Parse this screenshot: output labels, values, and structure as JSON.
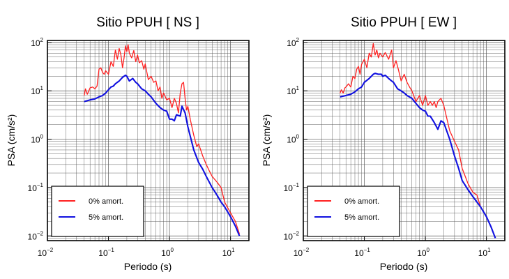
{
  "chart_data": [
    {
      "type": "line",
      "title": "Sitio PPUH [ NS ]",
      "xlabel": "Periodo (s)",
      "ylabel": "PSA (cm/s²)",
      "xscale": "log",
      "yscale": "log",
      "xlim": [
        0.01,
        20
      ],
      "ylim": [
        0.008,
        110
      ],
      "grid": true,
      "legend_position": "bottom-left",
      "xticks": [
        {
          "base": "10",
          "exp": "−2"
        },
        {
          "base": "10",
          "exp": "−1"
        },
        {
          "base": "10",
          "exp": "0"
        },
        {
          "base": "10",
          "exp": "1"
        }
      ],
      "yticks": [
        {
          "base": "10",
          "exp": "−2"
        },
        {
          "base": "10",
          "exp": "−1"
        },
        {
          "base": "10",
          "exp": "0"
        },
        {
          "base": "10",
          "exp": "1"
        },
        {
          "base": "10",
          "exp": "2"
        }
      ],
      "series": [
        {
          "name": "0% amort.",
          "color": "#ff2020",
          "x": [
            0.04,
            0.042,
            0.045,
            0.05,
            0.055,
            0.06,
            0.065,
            0.07,
            0.075,
            0.08,
            0.085,
            0.09,
            0.1,
            0.11,
            0.12,
            0.13,
            0.14,
            0.15,
            0.16,
            0.17,
            0.18,
            0.19,
            0.2,
            0.21,
            0.22,
            0.24,
            0.26,
            0.28,
            0.3,
            0.32,
            0.35,
            0.38,
            0.4,
            0.45,
            0.5,
            0.55,
            0.6,
            0.65,
            0.7,
            0.75,
            0.8,
            0.9,
            1.0,
            1.1,
            1.2,
            1.3,
            1.4,
            1.5,
            1.6,
            1.7,
            1.8,
            1.9,
            2.0,
            2.2,
            2.5,
            2.8,
            3.0,
            3.5,
            4.0,
            4.5,
            5.0,
            6.0,
            7.0,
            8.0,
            10.0,
            12.0,
            14.0
          ],
          "y": [
            8.0,
            11.0,
            8.5,
            11.5,
            12.0,
            11.0,
            12.5,
            28.0,
            30.0,
            24.0,
            22.0,
            26.0,
            22.0,
            40.0,
            32.0,
            70.0,
            45.0,
            75.0,
            55.0,
            30.0,
            48.0,
            85.0,
            65.0,
            90.0,
            60.0,
            48.0,
            68.0,
            40.0,
            55.0,
            38.0,
            42.0,
            28.0,
            36.0,
            17.0,
            20.0,
            15.0,
            16.0,
            10.0,
            12.0,
            7.0,
            9.0,
            6.5,
            7.0,
            4.5,
            7.0,
            5.5,
            3.5,
            9.0,
            14.0,
            15.0,
            7.0,
            4.0,
            4.8,
            2.5,
            1.2,
            0.7,
            0.8,
            0.45,
            0.3,
            0.22,
            0.17,
            0.13,
            0.1,
            0.05,
            0.03,
            0.02,
            0.011
          ]
        },
        {
          "name": "5% amort.",
          "color": "#1010e0",
          "x": [
            0.04,
            0.05,
            0.06,
            0.07,
            0.08,
            0.09,
            0.1,
            0.11,
            0.12,
            0.13,
            0.14,
            0.15,
            0.17,
            0.19,
            0.2,
            0.22,
            0.25,
            0.28,
            0.3,
            0.35,
            0.4,
            0.45,
            0.5,
            0.6,
            0.7,
            0.8,
            0.9,
            1.0,
            1.1,
            1.2,
            1.3,
            1.5,
            1.6,
            1.8,
            2.0,
            2.5,
            3.0,
            3.5,
            4.0,
            5.0,
            6.0,
            7.0,
            8.0,
            10.0,
            12.0,
            14.0
          ],
          "y": [
            6.0,
            6.5,
            6.8,
            7.5,
            8.0,
            9.0,
            10.5,
            12.0,
            12.5,
            14.0,
            15.0,
            16.0,
            19.0,
            21.0,
            20.0,
            16.0,
            18.0,
            15.0,
            14.0,
            11.0,
            10.0,
            8.5,
            7.5,
            5.5,
            4.5,
            4.0,
            3.8,
            2.6,
            2.6,
            2.4,
            3.2,
            3.0,
            4.8,
            3.5,
            1.8,
            0.6,
            0.33,
            0.24,
            0.17,
            0.1,
            0.07,
            0.05,
            0.04,
            0.025,
            0.016,
            0.01
          ]
        }
      ]
    },
    {
      "type": "line",
      "title": "Sitio PPUH [ EW ]",
      "xlabel": "Periodo (s)",
      "ylabel": "PSA (cm/s²)",
      "xscale": "log",
      "yscale": "log",
      "xlim": [
        0.01,
        20
      ],
      "ylim": [
        0.008,
        110
      ],
      "grid": true,
      "legend_position": "bottom-left",
      "xticks": [
        {
          "base": "10",
          "exp": "−2"
        },
        {
          "base": "10",
          "exp": "−1"
        },
        {
          "base": "10",
          "exp": "0"
        },
        {
          "base": "10",
          "exp": "1"
        }
      ],
      "yticks": [
        {
          "base": "10",
          "exp": "−2"
        },
        {
          "base": "10",
          "exp": "−1"
        },
        {
          "base": "10",
          "exp": "0"
        },
        {
          "base": "10",
          "exp": "1"
        },
        {
          "base": "10",
          "exp": "2"
        }
      ],
      "series": [
        {
          "name": "0% amort.",
          "color": "#ff2020",
          "x": [
            0.04,
            0.042,
            0.045,
            0.048,
            0.05,
            0.055,
            0.06,
            0.065,
            0.07,
            0.075,
            0.08,
            0.085,
            0.09,
            0.1,
            0.11,
            0.12,
            0.13,
            0.14,
            0.15,
            0.16,
            0.17,
            0.18,
            0.2,
            0.22,
            0.25,
            0.28,
            0.3,
            0.33,
            0.36,
            0.4,
            0.45,
            0.5,
            0.55,
            0.6,
            0.7,
            0.8,
            0.9,
            1.0,
            1.1,
            1.2,
            1.3,
            1.4,
            1.5,
            1.6,
            1.8,
            2.0,
            2.5,
            3.0,
            3.5,
            4.0,
            5.0,
            6.0,
            7.0,
            8.0,
            10.0,
            12.0,
            14.0
          ],
          "y": [
            9.0,
            10.5,
            9.0,
            11.5,
            12.0,
            14.0,
            12.0,
            20.0,
            18.0,
            28.0,
            32.0,
            22.0,
            35.0,
            45.0,
            30.0,
            60.0,
            50.0,
            95.0,
            55.0,
            70.0,
            48.0,
            60.0,
            50.0,
            62.0,
            45.0,
            70.0,
            30.0,
            42.0,
            28.0,
            16.0,
            22.0,
            15.0,
            12.0,
            10.0,
            6.0,
            8.0,
            5.0,
            8.0,
            5.0,
            6.0,
            5.0,
            6.0,
            4.5,
            6.0,
            7.0,
            5.0,
            1.5,
            0.9,
            0.6,
            0.25,
            0.12,
            0.08,
            0.07,
            0.04,
            0.025,
            0.015,
            0.009
          ]
        },
        {
          "name": "5% amort.",
          "color": "#1010e0",
          "x": [
            0.04,
            0.05,
            0.06,
            0.07,
            0.08,
            0.09,
            0.1,
            0.12,
            0.14,
            0.15,
            0.17,
            0.19,
            0.2,
            0.22,
            0.25,
            0.28,
            0.3,
            0.35,
            0.4,
            0.45,
            0.5,
            0.6,
            0.7,
            0.8,
            0.9,
            1.0,
            1.1,
            1.2,
            1.4,
            1.6,
            1.8,
            2.0,
            2.5,
            3.0,
            3.5,
            4.0,
            5.0,
            6.0,
            7.0,
            8.0,
            10.0,
            12.0,
            14.0
          ],
          "y": [
            7.5,
            8.0,
            8.5,
            9.5,
            11.0,
            12.0,
            15.0,
            18.0,
            22.0,
            23.0,
            22.0,
            22.0,
            20.0,
            21.0,
            18.0,
            16.0,
            15.0,
            11.0,
            10.0,
            9.0,
            8.0,
            7.0,
            5.5,
            4.5,
            4.0,
            3.8,
            3.0,
            3.0,
            2.2,
            1.6,
            2.4,
            2.2,
            1.0,
            0.45,
            0.25,
            0.14,
            0.09,
            0.065,
            0.05,
            0.04,
            0.025,
            0.015,
            0.009
          ]
        }
      ]
    }
  ]
}
